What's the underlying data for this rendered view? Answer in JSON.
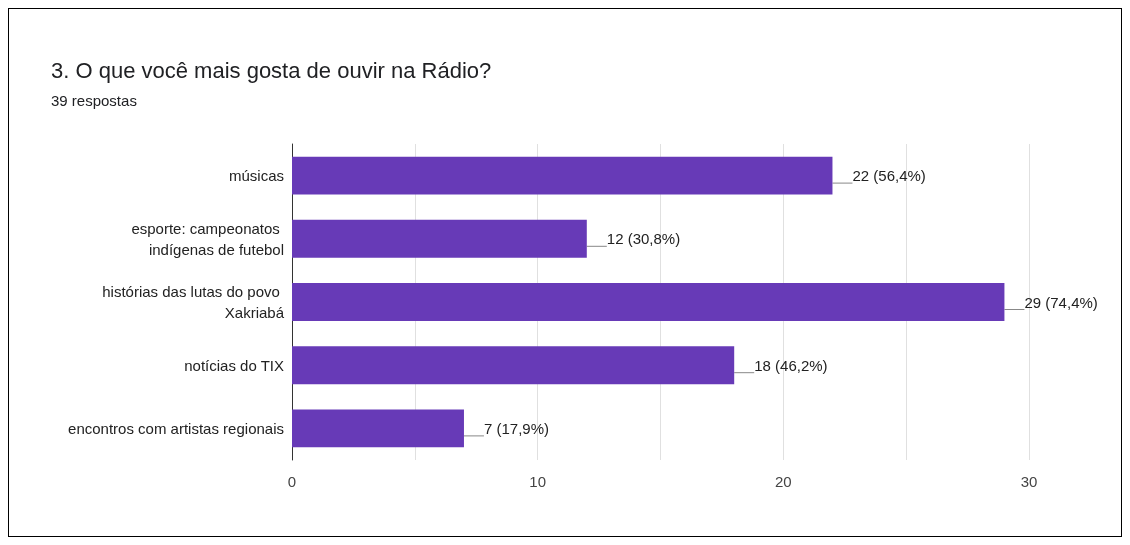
{
  "chart_data": {
    "type": "bar",
    "orientation": "horizontal",
    "title": "3. O que você mais gosta de ouvir na Rádio?",
    "subtitle": "39 respostas",
    "categories": [
      "músicas",
      "esporte: campeonatos indígenas de futebol",
      "histórias das lutas do povo Xakriabá",
      "notícias do TIX",
      "encontros com artistas regionais"
    ],
    "values": [
      22,
      12,
      29,
      18,
      7
    ],
    "value_labels": [
      "22 (56,4%)",
      "12 (30,8%)",
      "29 (74,4%)",
      "18 (46,2%)",
      "7 (17,9%)"
    ],
    "color": "#673ab7",
    "xlim": [
      0,
      30
    ],
    "xticks": [
      0,
      {
        "value": 5,
        "label": null
      },
      10,
      {
        "value": 15,
        "label": null
      },
      20,
      {
        "value": 25,
        "label": null
      },
      30
    ],
    "grid": "x"
  }
}
